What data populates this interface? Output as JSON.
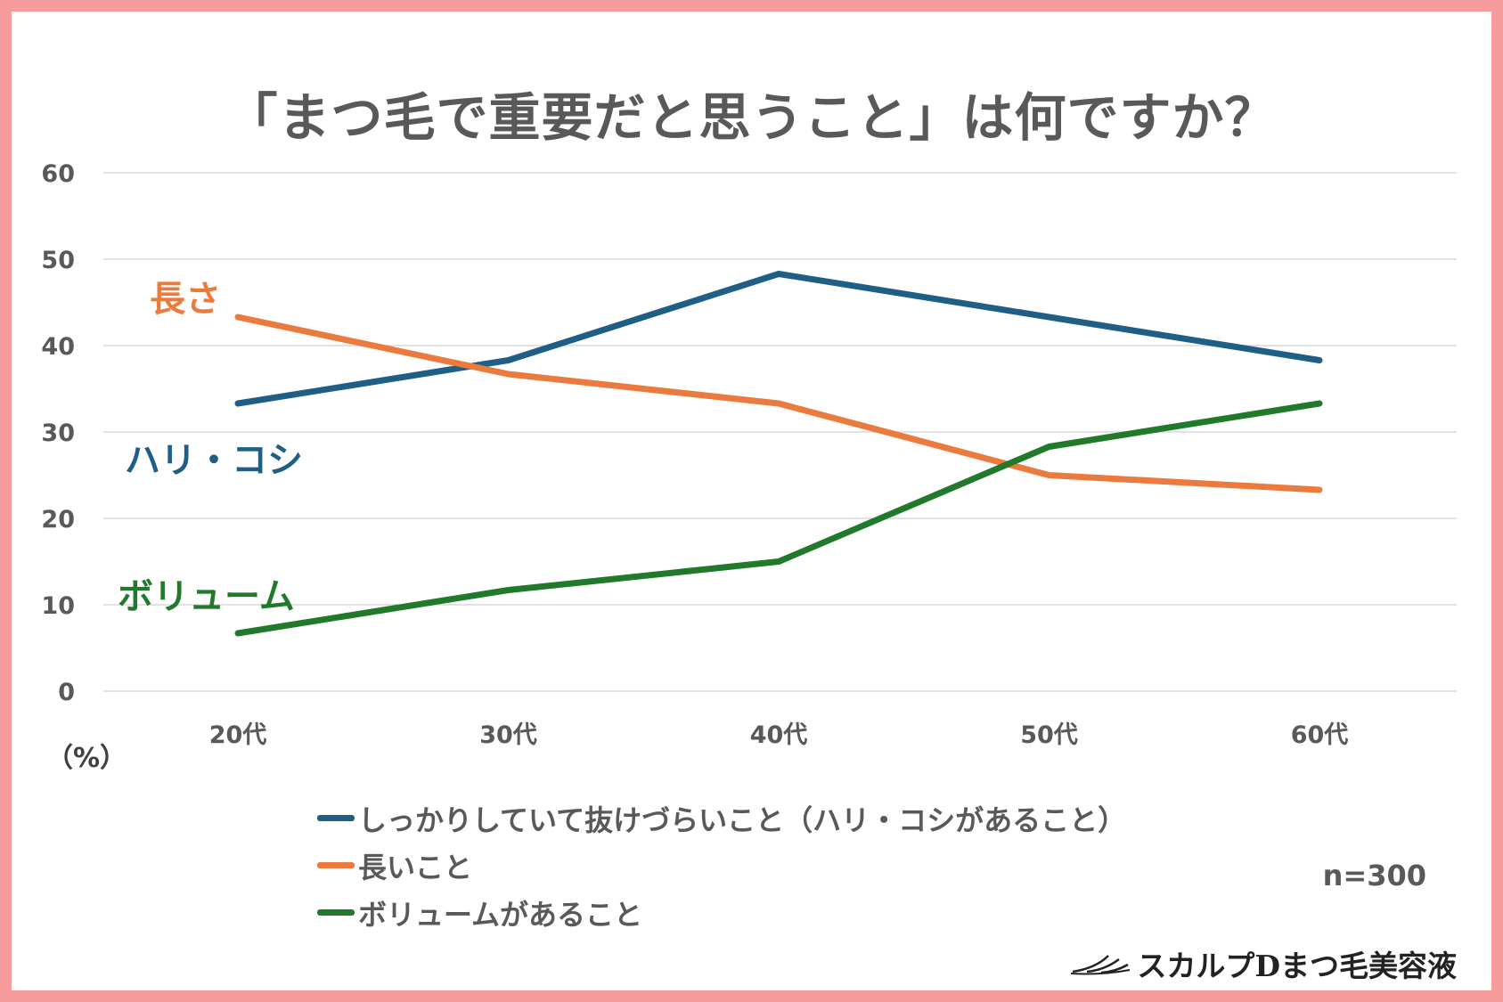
{
  "chart_data": {
    "type": "line",
    "title": "「まつ毛で重要だと思うこと」は何ですか？",
    "categories": [
      "20代",
      "30代",
      "40代",
      "50代",
      "60代"
    ],
    "ylabel": "（%）",
    "ylim": [
      0,
      60
    ],
    "yticks": [
      0,
      10,
      20,
      30,
      40,
      50,
      60
    ],
    "grid": true,
    "legend_position": "bottom",
    "series": [
      {
        "name": "しっかりしていて抜けづらいこと（ハリ・コシがあること）",
        "annotation": "ハリ・コシ",
        "color": "#1f5f86",
        "values": [
          33.3,
          38.3,
          48.3,
          43.3,
          38.3
        ]
      },
      {
        "name": "長いこと",
        "annotation": "長さ",
        "color": "#ea7a3d",
        "values": [
          43.3,
          36.7,
          33.3,
          25.0,
          23.3
        ]
      },
      {
        "name": "ボリュームがあること",
        "annotation": "ボリューム",
        "color": "#217a2b",
        "values": [
          6.7,
          11.7,
          15.0,
          28.3,
          33.3
        ]
      }
    ],
    "sample_size": "n=300"
  },
  "brand": "スカルプDまつ毛美容液"
}
